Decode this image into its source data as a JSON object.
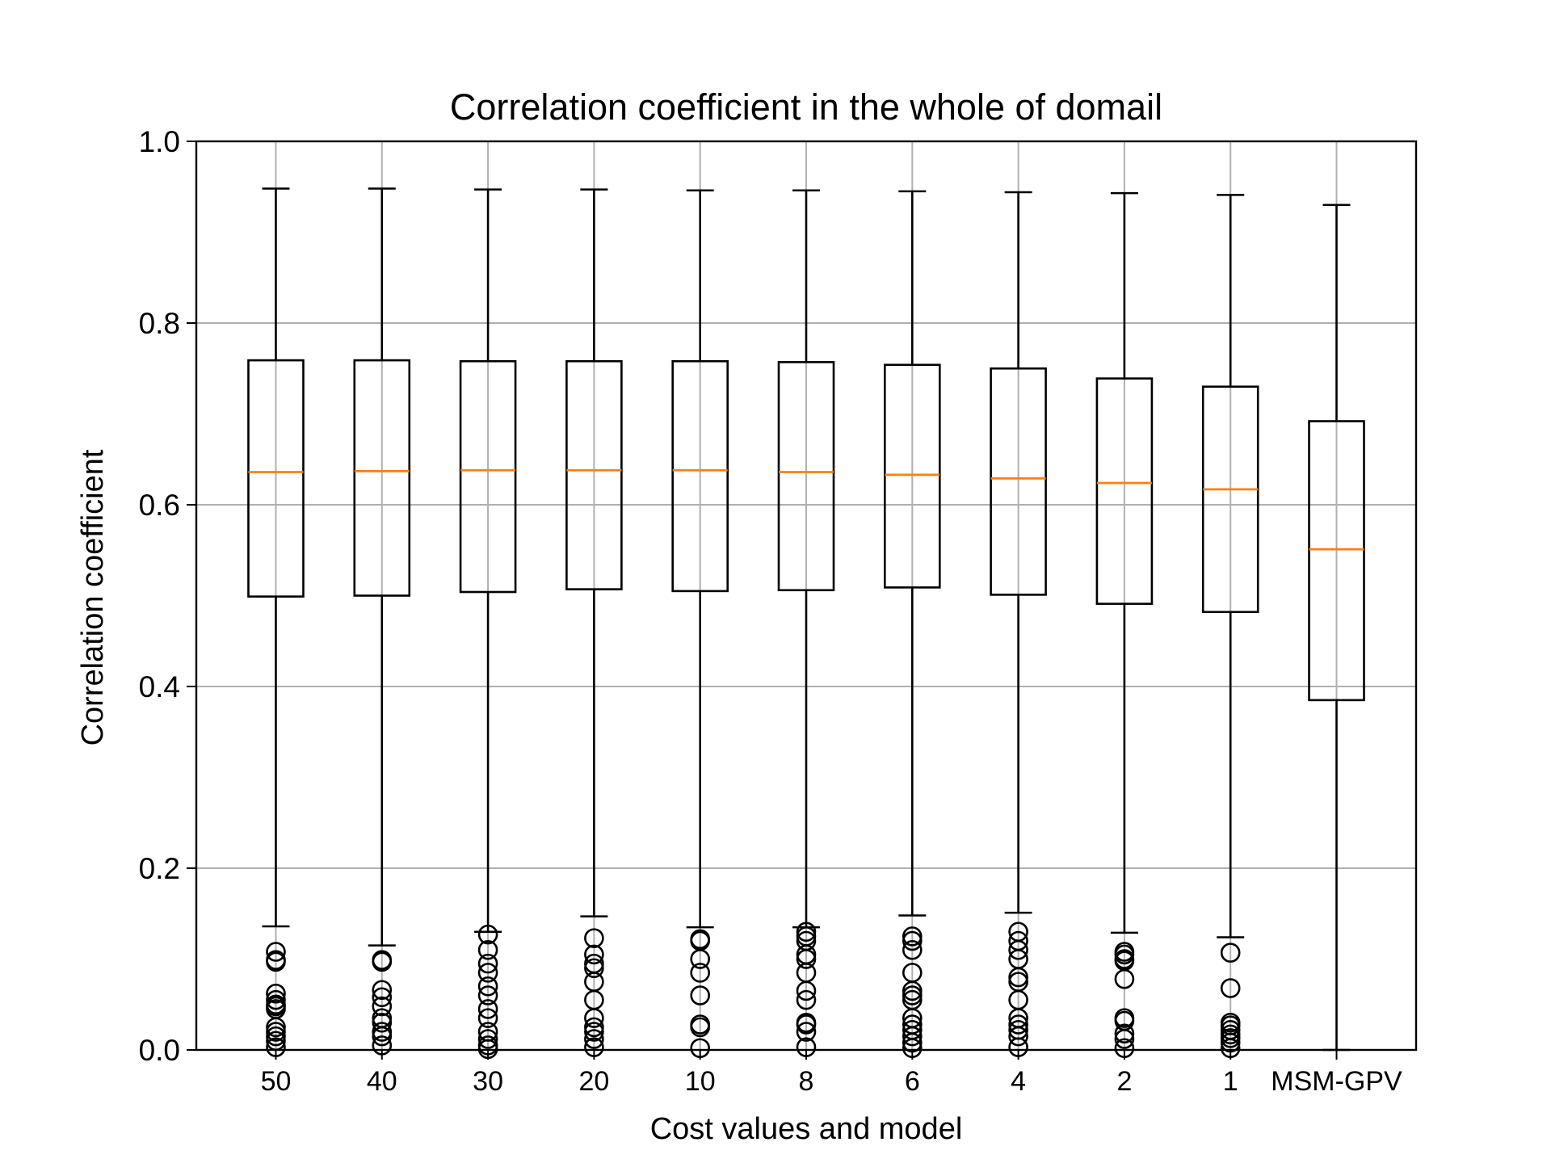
{
  "chart_data": {
    "type": "box",
    "title": "Correlation coefficient in the whole of domail",
    "xlabel": "Cost values and model",
    "ylabel": "Correlation coefficient",
    "ylim": [
      0.0,
      1.0
    ],
    "yticks": [
      "0.0",
      "0.2",
      "0.4",
      "0.6",
      "0.8",
      "1.0"
    ],
    "grid": true,
    "colors": {
      "box": "#000000",
      "median": "#ff7f0e",
      "grid": "#b0b0b0"
    },
    "categories": [
      "50",
      "40",
      "30",
      "20",
      "10",
      "8",
      "6",
      "4",
      "2",
      "1",
      "MSM-GPV"
    ],
    "boxes": [
      {
        "whisker_low": 0.136,
        "q1": 0.499,
        "median": 0.636,
        "q3": 0.759,
        "whisker_high": 0.948,
        "outliers": [
          0.108,
          0.099,
          0.097,
          0.062,
          0.055,
          0.05,
          0.048,
          0.045,
          0.025,
          0.02,
          0.015,
          0.01,
          0.003
        ]
      },
      {
        "whisker_low": 0.115,
        "q1": 0.5,
        "median": 0.637,
        "q3": 0.759,
        "whisker_high": 0.948,
        "outliers": [
          0.099,
          0.097,
          0.066,
          0.058,
          0.048,
          0.035,
          0.03,
          0.02,
          0.015,
          0.005
        ]
      },
      {
        "whisker_low": 0.13,
        "q1": 0.504,
        "median": 0.638,
        "q3": 0.758,
        "whisker_high": 0.947,
        "outliers": [
          0.127,
          0.11,
          0.095,
          0.085,
          0.07,
          0.06,
          0.045,
          0.035,
          0.02,
          0.012,
          0.005,
          0.001
        ]
      },
      {
        "whisker_low": 0.147,
        "q1": 0.507,
        "median": 0.638,
        "q3": 0.758,
        "whisker_high": 0.947,
        "outliers": [
          0.123,
          0.105,
          0.095,
          0.09,
          0.075,
          0.055,
          0.035,
          0.025,
          0.02,
          0.012,
          0.003
        ]
      },
      {
        "whisker_low": 0.135,
        "q1": 0.505,
        "median": 0.638,
        "q3": 0.758,
        "whisker_high": 0.946,
        "outliers": [
          0.122,
          0.12,
          0.1,
          0.085,
          0.06,
          0.028,
          0.025,
          0.002
        ]
      },
      {
        "whisker_low": 0.135,
        "q1": 0.506,
        "median": 0.636,
        "q3": 0.757,
        "whisker_high": 0.946,
        "outliers": [
          0.13,
          0.125,
          0.12,
          0.105,
          0.1,
          0.085,
          0.065,
          0.055,
          0.03,
          0.028,
          0.02,
          0.003
        ]
      },
      {
        "whisker_low": 0.148,
        "q1": 0.509,
        "median": 0.633,
        "q3": 0.754,
        "whisker_high": 0.945,
        "outliers": [
          0.125,
          0.12,
          0.11,
          0.085,
          0.065,
          0.06,
          0.055,
          0.035,
          0.028,
          0.022,
          0.015,
          0.008,
          0.002
        ]
      },
      {
        "whisker_low": 0.151,
        "q1": 0.501,
        "median": 0.629,
        "q3": 0.75,
        "whisker_high": 0.944,
        "outliers": [
          0.13,
          0.12,
          0.11,
          0.1,
          0.08,
          0.075,
          0.055,
          0.035,
          0.028,
          0.022,
          0.015,
          0.003
        ]
      },
      {
        "whisker_low": 0.129,
        "q1": 0.491,
        "median": 0.624,
        "q3": 0.739,
        "whisker_high": 0.943,
        "outliers": [
          0.108,
          0.105,
          0.1,
          0.098,
          0.078,
          0.035,
          0.032,
          0.018,
          0.012,
          0.002
        ]
      },
      {
        "whisker_low": 0.124,
        "q1": 0.482,
        "median": 0.617,
        "q3": 0.73,
        "whisker_high": 0.941,
        "outliers": [
          0.107,
          0.068,
          0.03,
          0.027,
          0.022,
          0.017,
          0.013,
          0.008,
          0.002
        ]
      },
      {
        "whisker_low": 0.0,
        "q1": 0.385,
        "median": 0.551,
        "q3": 0.692,
        "whisker_high": 0.93,
        "outliers": []
      }
    ]
  }
}
